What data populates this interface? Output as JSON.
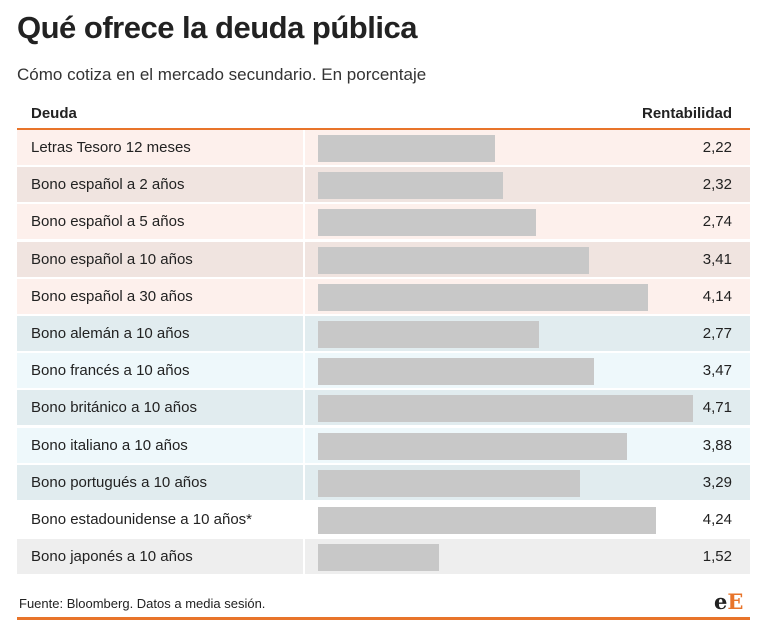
{
  "title": "Qué ofrece la deuda pública",
  "subtitle": "Cómo cotiza en el mercado secundario. En porcentaje",
  "header": {
    "left": "Deuda",
    "right": "Rentabilidad"
  },
  "footer": {
    "source": "Fuente: Bloomberg. Datos a media sesión."
  },
  "logo": {
    "part1": "e",
    "part2": "E"
  },
  "colors": {
    "accent": "#e8742a",
    "bar": "#c8c8c8",
    "spain_light": "#fdf0ec",
    "spain_dark": "#f0e4e0",
    "europe_dark": "#e1ecef",
    "europe_light": "#eef8fb",
    "other_light": "#ffffff",
    "other_dark": "#eeeeee"
  },
  "chart_data": {
    "type": "bar",
    "orientation": "horizontal",
    "xlim": [
      0,
      4.71
    ],
    "categories": [
      "Letras Tesoro 12 meses",
      "Bono español a 2 años",
      "Bono español a 5 años",
      "Bono español a 10 años",
      "Bono español a 30 años",
      "Bono alemán a 10 años",
      "Bono francés a 10 años",
      "Bono británico a 10 años",
      "Bono italiano a 10 años",
      "Bono portugués a 10 años",
      "Bono estadounidense a 10 años*",
      "Bono japonés a 10 años"
    ],
    "values": [
      2.22,
      2.32,
      2.74,
      3.41,
      4.14,
      2.77,
      3.47,
      4.71,
      3.88,
      3.29,
      4.24,
      1.52
    ],
    "value_labels": [
      "2,22",
      "2,32",
      "2,74",
      "3,41",
      "4,14",
      "2,77",
      "3,47",
      "4,71",
      "3,88",
      "3,29",
      "4,24",
      "1,52"
    ],
    "row_colors": [
      "#fdf0ec",
      "#f0e4e0",
      "#fdf0ec",
      "#f0e4e0",
      "#fdf0ec",
      "#e1ecef",
      "#eef8fb",
      "#e1ecef",
      "#eef8fb",
      "#e1ecef",
      "#ffffff",
      "#eeeeee"
    ]
  }
}
